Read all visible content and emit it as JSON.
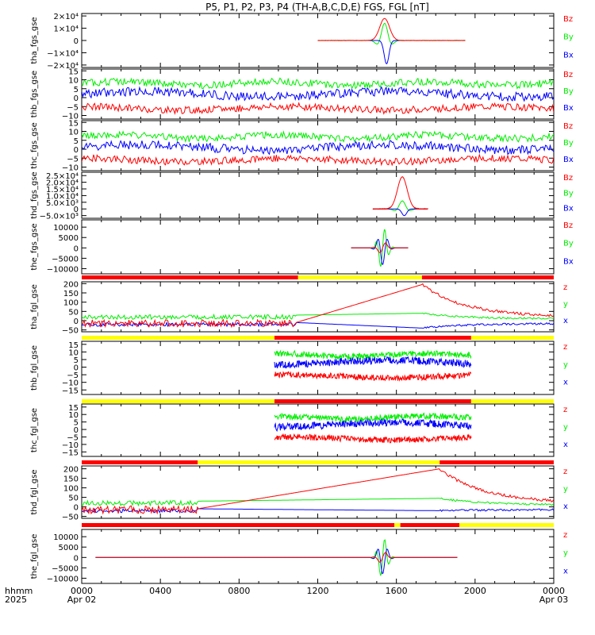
{
  "title": "P5, P1, P2, P3, P4 (TH-A,B,C,D,E) FGS, FGL [nT]",
  "time_axis": {
    "label_line1": "hhmm",
    "label_line2": "2025",
    "ticks": [
      {
        "t": 0,
        "l1": "0000",
        "l2": "Apr 02"
      },
      {
        "t": 4,
        "l1": "0400",
        "l2": ""
      },
      {
        "t": 8,
        "l1": "0800",
        "l2": ""
      },
      {
        "t": 12,
        "l1": "1200",
        "l2": ""
      },
      {
        "t": 16,
        "l1": "1600",
        "l2": ""
      },
      {
        "t": 20,
        "l1": "2000",
        "l2": ""
      },
      {
        "t": 24,
        "l1": "0000",
        "l2": "Apr 03"
      }
    ]
  },
  "colors": {
    "x": "#0000ff",
    "y": "#00ee00",
    "z": "#ff0000",
    "bar_red": "#ff0000",
    "bar_yellow": "#ffff00",
    "axis": "#000000"
  },
  "chart_data": [
    {
      "type": "line",
      "ylabel": "tha_fgs_gse",
      "legend": [
        "Bz",
        "By",
        "Bx"
      ],
      "ylim": [
        -22000,
        22000
      ],
      "yticks": [
        {
          "v": 20000,
          "l": "2×10⁴"
        },
        {
          "v": 10000,
          "l": "1×10⁴"
        },
        {
          "v": 0,
          "l": "0"
        },
        {
          "v": -10000,
          "l": "−1×10⁴"
        },
        {
          "v": -20000,
          "l": "−2×10⁴"
        }
      ],
      "kind": "spike",
      "data_range": [
        12.0,
        19.5
      ],
      "peak": {
        "t": 15.4,
        "z": 18000,
        "y": 14000,
        "x": -19000,
        "width": 0.35
      }
    },
    {
      "type": "line",
      "ylabel": "thb_fgs_gse",
      "legend": [
        "Bz",
        "By",
        "Bx"
      ],
      "ylim": [
        -12,
        16
      ],
      "yticks": [
        {
          "v": 15,
          "l": "15"
        },
        {
          "v": 10,
          "l": "10"
        },
        {
          "v": 5,
          "l": "5"
        },
        {
          "v": 0,
          "l": "0"
        },
        {
          "v": -5,
          "l": "−5"
        },
        {
          "v": -10,
          "l": "−10"
        }
      ],
      "kind": "noisy",
      "data_range": [
        0,
        24
      ],
      "levels": {
        "y": 8,
        "x": 2,
        "z": -6
      }
    },
    {
      "type": "line",
      "ylabel": "thc_fgs_gse",
      "legend": [
        "Bz",
        "By",
        "Bx"
      ],
      "ylim": [
        -12,
        16
      ],
      "yticks": [
        {
          "v": 15,
          "l": "15"
        },
        {
          "v": 10,
          "l": "10"
        },
        {
          "v": 5,
          "l": "5"
        },
        {
          "v": 0,
          "l": "0"
        },
        {
          "v": -5,
          "l": "−5"
        },
        {
          "v": -10,
          "l": "−10"
        }
      ],
      "kind": "noisy",
      "data_range": [
        0,
        24
      ],
      "levels": {
        "y": 7,
        "x": 1,
        "z": -6
      }
    },
    {
      "type": "line",
      "ylabel": "thd_fgs_gse",
      "legend": [
        "Bz",
        "By",
        "Bx"
      ],
      "ylim": [
        -7000,
        27500
      ],
      "yticks": [
        {
          "v": 25000,
          "l": "2.5×10⁴"
        },
        {
          "v": 20000,
          "l": "2.0×10⁴"
        },
        {
          "v": 15000,
          "l": "1.5×10⁴"
        },
        {
          "v": 10000,
          "l": "1.0×10⁴"
        },
        {
          "v": 5000,
          "l": "5.0×10³"
        },
        {
          "v": 0,
          "l": "0"
        },
        {
          "v": -5000,
          "l": "−5.0×10³"
        }
      ],
      "kind": "spike",
      "data_range": [
        14.8,
        17.6
      ],
      "peak": {
        "t": 16.3,
        "z": 24000,
        "y": 6000,
        "x": -5000,
        "width": 0.35
      }
    },
    {
      "type": "line",
      "ylabel": "the_fgs_gse",
      "legend": [
        "Bz",
        "By",
        "Bx"
      ],
      "ylim": [
        -12500,
        13500
      ],
      "yticks": [
        {
          "v": 10000,
          "l": "10000"
        },
        {
          "v": 5000,
          "l": "5000"
        },
        {
          "v": 0,
          "l": "0"
        },
        {
          "v": -5000,
          "l": "−5000"
        },
        {
          "v": -10000,
          "l": "−10000"
        }
      ],
      "kind": "osc",
      "data_range": [
        13.7,
        16.6
      ],
      "peak": {
        "t": 15.3,
        "amp": 10000,
        "width": 0.3
      }
    },
    {
      "type": "line",
      "ylabel": "tha_fgl_gse",
      "legend": [
        "z",
        "y",
        "x"
      ],
      "ylim": [
        -60,
        210
      ],
      "yticks": [
        {
          "v": 200,
          "l": "200"
        },
        {
          "v": 150,
          "l": "150"
        },
        {
          "v": 100,
          "l": "100"
        },
        {
          "v": 50,
          "l": "50"
        },
        {
          "v": 0,
          "l": "0"
        },
        {
          "v": -50,
          "l": "−50"
        }
      ],
      "kind": "ramp",
      "data_range": [
        0,
        24
      ],
      "gap": [
        10.9,
        17.3
      ],
      "ramp_peak": {
        "t": 17.3,
        "z": 195,
        "y": 40,
        "x": -40
      },
      "bar": [
        {
          "from": 0,
          "to": 11.0,
          "c": "r"
        },
        {
          "from": 11.0,
          "to": 17.3,
          "c": "y"
        },
        {
          "from": 17.3,
          "to": 24,
          "c": "r"
        }
      ]
    },
    {
      "type": "line",
      "ylabel": "thb_fgl_gse",
      "legend": [
        "z",
        "y",
        "x"
      ],
      "ylim": [
        -18,
        17
      ],
      "yticks": [
        {
          "v": 15,
          "l": "15"
        },
        {
          "v": 10,
          "l": "10"
        },
        {
          "v": 5,
          "l": "5"
        },
        {
          "v": 0,
          "l": "0"
        },
        {
          "v": -5,
          "l": "−5"
        },
        {
          "v": -10,
          "l": "−10"
        },
        {
          "v": -15,
          "l": "−15"
        }
      ],
      "kind": "noisy",
      "data_range": [
        9.8,
        19.8
      ],
      "levels": {
        "y": 8,
        "x": 3,
        "z": -6
      },
      "bar": [
        {
          "from": 0,
          "to": 9.8,
          "c": "y"
        },
        {
          "from": 9.8,
          "to": 19.8,
          "c": "r"
        },
        {
          "from": 19.8,
          "to": 24,
          "c": "y"
        }
      ]
    },
    {
      "type": "line",
      "ylabel": "thc_fgl_gse",
      "legend": [
        "z",
        "y",
        "x"
      ],
      "ylim": [
        -18,
        17
      ],
      "yticks": [
        {
          "v": 15,
          "l": "15"
        },
        {
          "v": 10,
          "l": "10"
        },
        {
          "v": 5,
          "l": "5"
        },
        {
          "v": 0,
          "l": "0"
        },
        {
          "v": -5,
          "l": "−5"
        },
        {
          "v": -10,
          "l": "−10"
        },
        {
          "v": -15,
          "l": "−15"
        }
      ],
      "kind": "noisy",
      "data_range": [
        9.8,
        19.8
      ],
      "levels": {
        "y": 8,
        "x": 3,
        "z": -6
      },
      "bar": [
        {
          "from": 0,
          "to": 9.8,
          "c": "y"
        },
        {
          "from": 9.8,
          "to": 19.8,
          "c": "r"
        },
        {
          "from": 19.8,
          "to": 24,
          "c": "y"
        }
      ]
    },
    {
      "type": "line",
      "ylabel": "thd_fgl_gse",
      "legend": [
        "z",
        "y",
        "x"
      ],
      "ylim": [
        -60,
        215
      ],
      "yticks": [
        {
          "v": 200,
          "l": "200"
        },
        {
          "v": 150,
          "l": "150"
        },
        {
          "v": 100,
          "l": "100"
        },
        {
          "v": 50,
          "l": "50"
        },
        {
          "v": 0,
          "l": "0"
        },
        {
          "v": -50,
          "l": "−50"
        }
      ],
      "kind": "ramp",
      "data_range": [
        0,
        24
      ],
      "gap": [
        5.9,
        18.2
      ],
      "ramp_peak": {
        "t": 18.2,
        "z": 200,
        "y": 45,
        "x": -20
      },
      "bar": [
        {
          "from": 0,
          "to": 5.9,
          "c": "r"
        },
        {
          "from": 5.9,
          "to": 18.2,
          "c": "y"
        },
        {
          "from": 18.2,
          "to": 24,
          "c": "r"
        }
      ]
    },
    {
      "type": "line",
      "ylabel": "the_fgl_gse",
      "legend": [
        "z",
        "y",
        "x"
      ],
      "ylim": [
        -12500,
        13500
      ],
      "yticks": [
        {
          "v": 10000,
          "l": "10000"
        },
        {
          "v": 5000,
          "l": "5000"
        },
        {
          "v": 0,
          "l": "0"
        },
        {
          "v": -5000,
          "l": "−5000"
        },
        {
          "v": -10000,
          "l": "−10000"
        }
      ],
      "kind": "osc",
      "data_range": [
        0.7,
        19.1
      ],
      "peak": {
        "t": 15.3,
        "amp": 10000,
        "width": 0.3
      },
      "bar": [
        {
          "from": 0,
          "to": 15.9,
          "c": "r"
        },
        {
          "from": 15.9,
          "to": 16.2,
          "c": "y"
        },
        {
          "from": 16.2,
          "to": 19.2,
          "c": "r"
        },
        {
          "from": 19.2,
          "to": 24,
          "c": "y"
        }
      ]
    }
  ]
}
